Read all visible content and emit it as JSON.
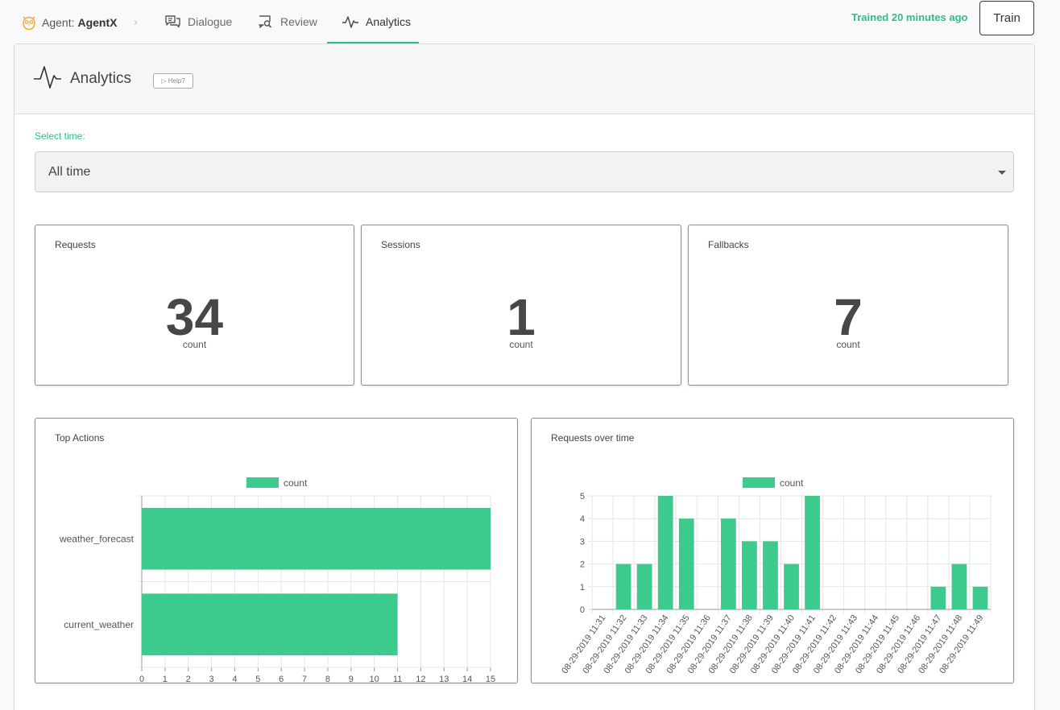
{
  "nav": {
    "agent_label": "Agent:",
    "agent_name": "AgentX",
    "separator": "›",
    "tabs": [
      {
        "label": "Dialogue"
      },
      {
        "label": "Review"
      },
      {
        "label": "Analytics"
      }
    ],
    "trained_status": "Trained 20 minutes ago",
    "train_label": "Train"
  },
  "header": {
    "title": "Analytics",
    "help_label": "▷ Help?"
  },
  "filter": {
    "label": "Select time:",
    "selected": "All time"
  },
  "stats": [
    {
      "title": "Requests",
      "value": "34",
      "unit": "count"
    },
    {
      "title": "Sessions",
      "value": "1",
      "unit": "count"
    },
    {
      "title": "Fallbacks",
      "value": "7",
      "unit": "count"
    }
  ],
  "colors": {
    "accent": "#2ebf85",
    "bar": "#3ccb8c"
  },
  "chart_data": [
    {
      "type": "bar",
      "orientation": "horizontal",
      "title": "Top Actions",
      "legend": "count",
      "categories": [
        "weather_forecast",
        "current_weather"
      ],
      "values": [
        15,
        11
      ],
      "xlim": [
        0,
        15
      ],
      "ticks": [
        "0",
        "1",
        "2",
        "3",
        "4",
        "5",
        "6",
        "7",
        "8",
        "9",
        "10",
        "11",
        "12",
        "13",
        "14",
        "15"
      ]
    },
    {
      "type": "bar",
      "title": "Requests over time",
      "legend": "count",
      "categories": [
        "08-29-2019 11:31",
        "08-29-2019 11:32",
        "08-29-2019 11:33",
        "08-29-2019 11:34",
        "08-29-2019 11:35",
        "08-29-2019 11:36",
        "08-29-2019 11:37",
        "08-29-2019 11:38",
        "08-29-2019 11:39",
        "08-29-2019 11:40",
        "08-29-2019 11:41",
        "08-29-2019 11:42",
        "08-29-2019 11:43",
        "08-29-2019 11:44",
        "08-29-2019 11:45",
        "08-29-2019 11:46",
        "08-29-2019 11:47",
        "08-29-2019 11:48",
        "08-29-2019 11:49"
      ],
      "values": [
        0,
        2,
        2,
        5,
        4,
        0,
        4,
        3,
        3,
        2,
        5,
        0,
        0,
        0,
        0,
        0,
        1,
        2,
        1
      ],
      "ylim": [
        0,
        5
      ],
      "ticks": [
        "0",
        "1",
        "2",
        "3",
        "4",
        "5"
      ]
    }
  ]
}
